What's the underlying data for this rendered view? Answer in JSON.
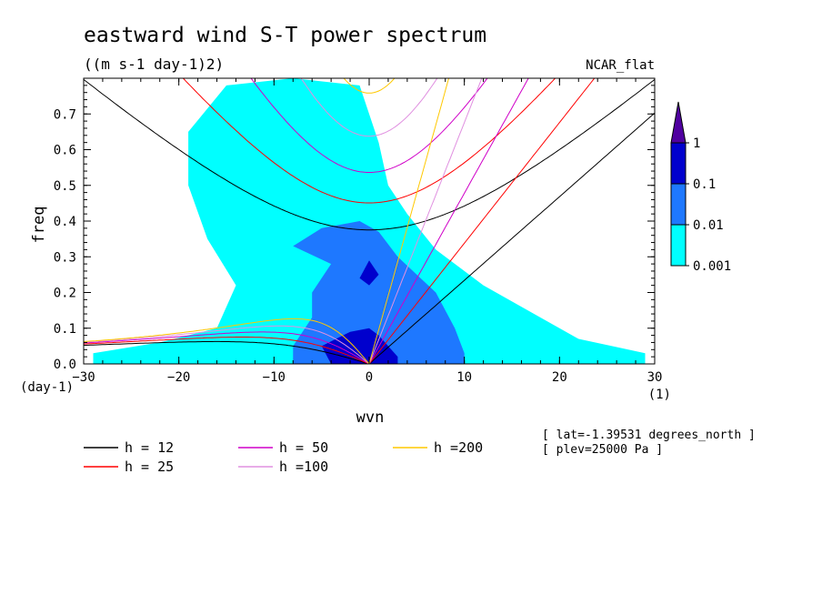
{
  "chart_data": {
    "type": "heatmap",
    "title": "eastward wind S-T power spectrum",
    "subtitle": "((m s-1 day-1)2)",
    "corner_label": "NCAR_flat",
    "xlabel": "wvn",
    "ylabel": "freq",
    "x_unit": "(1)",
    "y_unit": "(day-1)",
    "xlim": [
      -30,
      30
    ],
    "ylim": [
      0,
      0.8
    ],
    "xticks": [
      -30,
      -20,
      -10,
      0,
      10,
      20,
      30
    ],
    "yticks": [
      0.0,
      0.1,
      0.2,
      0.3,
      0.4,
      0.5,
      0.6,
      0.7
    ],
    "xtick_labels": [
      "−30",
      "−20",
      "−10",
      "0",
      "10",
      "20",
      "30"
    ],
    "ytick_labels": [
      "0.0",
      "0.1",
      "0.2",
      "0.3",
      "0.4",
      "0.5",
      "0.6",
      "0.7"
    ],
    "colorbar": {
      "levels": [
        "0.001",
        "0.01",
        "0.1",
        "1"
      ],
      "colors": [
        "#00ffff",
        "#1e78ff",
        "#0000cd",
        "#5000a0"
      ]
    },
    "field_regions": [
      {
        "level": 0.001,
        "color": "#00ffff",
        "polygon": [
          [
            -29,
            0
          ],
          [
            -29,
            0.03
          ],
          [
            -22,
            0.06
          ],
          [
            -16,
            0.1
          ],
          [
            -14,
            0.22
          ],
          [
            -17,
            0.35
          ],
          [
            -19,
            0.5
          ],
          [
            -19,
            0.65
          ],
          [
            -15,
            0.78
          ],
          [
            -8,
            0.8
          ],
          [
            -1,
            0.78
          ],
          [
            1,
            0.62
          ],
          [
            2,
            0.5
          ],
          [
            4,
            0.42
          ],
          [
            7,
            0.32
          ],
          [
            12,
            0.22
          ],
          [
            18,
            0.13
          ],
          [
            22,
            0.07
          ],
          [
            29,
            0.03
          ],
          [
            29,
            0
          ],
          [
            0,
            0
          ]
        ]
      },
      {
        "level": 0.01,
        "color": "#1e78ff",
        "polygon": [
          [
            -8,
            0
          ],
          [
            -8,
            0.05
          ],
          [
            -6,
            0.13
          ],
          [
            -6,
            0.2
          ],
          [
            -4,
            0.28
          ],
          [
            -8,
            0.33
          ],
          [
            -5,
            0.38
          ],
          [
            -1,
            0.4
          ],
          [
            1,
            0.37
          ],
          [
            3,
            0.3
          ],
          [
            7,
            0.2
          ],
          [
            9,
            0.1
          ],
          [
            10,
            0.03
          ],
          [
            10,
            0
          ]
        ]
      },
      {
        "level": 0.1,
        "color": "#0000cd",
        "polygon": [
          [
            -4,
            0
          ],
          [
            -5,
            0.05
          ],
          [
            -2,
            0.09
          ],
          [
            0,
            0.1
          ],
          [
            1,
            0.08
          ],
          [
            2,
            0.05
          ],
          [
            3,
            0.02
          ],
          [
            3,
            0
          ]
        ]
      },
      {
        "level": 0.1,
        "color": "#0000cd",
        "polygon": [
          [
            -1,
            0.24
          ],
          [
            0,
            0.29
          ],
          [
            1,
            0.25
          ],
          [
            0,
            0.22
          ]
        ]
      }
    ],
    "series": [
      {
        "name": "h = 12",
        "h": 12,
        "color": "#000000"
      },
      {
        "name": "h = 25",
        "h": 25,
        "color": "#ff0000"
      },
      {
        "name": "h = 50",
        "h": 50,
        "color": "#d000c8"
      },
      {
        "name": "h =100",
        "h": 100,
        "color": "#e090e0"
      },
      {
        "name": "h =200",
        "h": 200,
        "color": "#ffc800"
      }
    ],
    "annotations": [
      "[ lat=-1.39531 degrees_north ]",
      "[ plev=25000 Pa ]"
    ]
  }
}
